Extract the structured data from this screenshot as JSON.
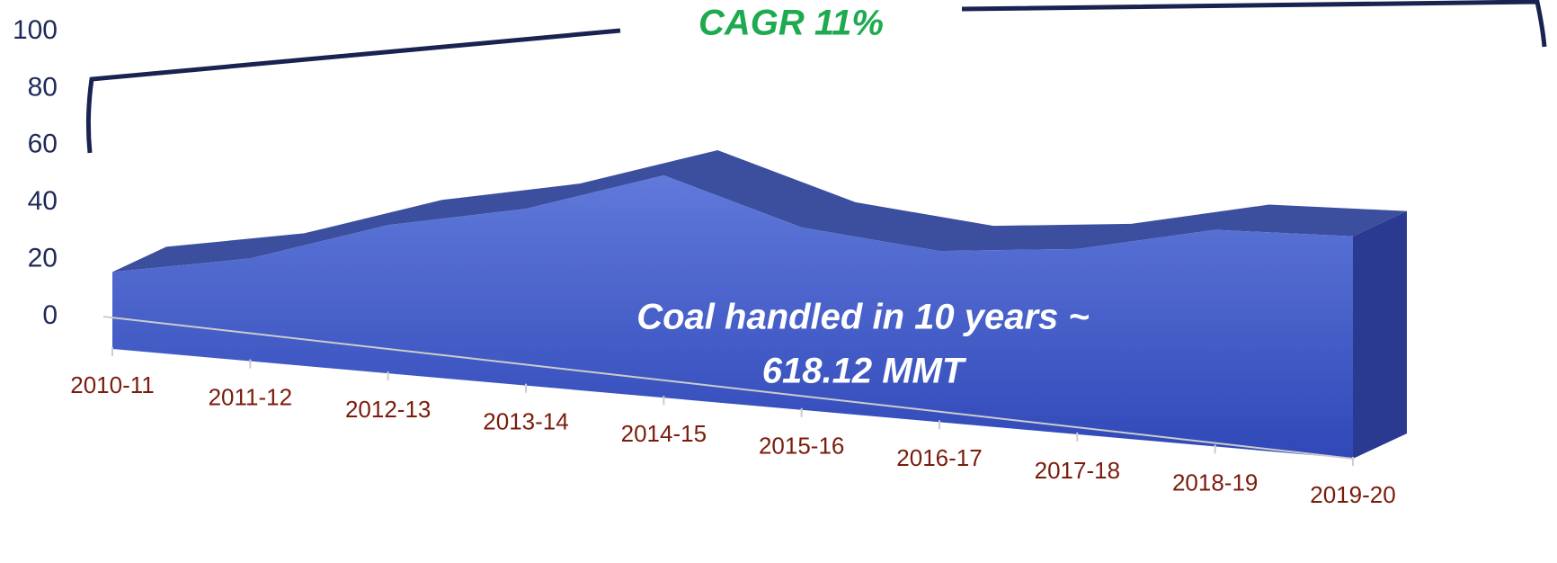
{
  "chart_data": {
    "type": "area3d",
    "categories": [
      "2010-11",
      "2011-12",
      "2012-13",
      "2013-14",
      "2014-15",
      "2015-16",
      "2016-17",
      "2017-18",
      "2018-19",
      "2019-20"
    ],
    "values": [
      27,
      36,
      52,
      62,
      78,
      64,
      60,
      65,
      76,
      78
    ],
    "color": "#4a63cf",
    "ylim": [
      0,
      100
    ],
    "yticks": [
      0,
      20,
      40,
      60,
      80,
      100
    ],
    "cagr_label": "CAGR  11%",
    "annotation": [
      "Coal handled in 10 years ~",
      "618.12 MMT"
    ]
  }
}
